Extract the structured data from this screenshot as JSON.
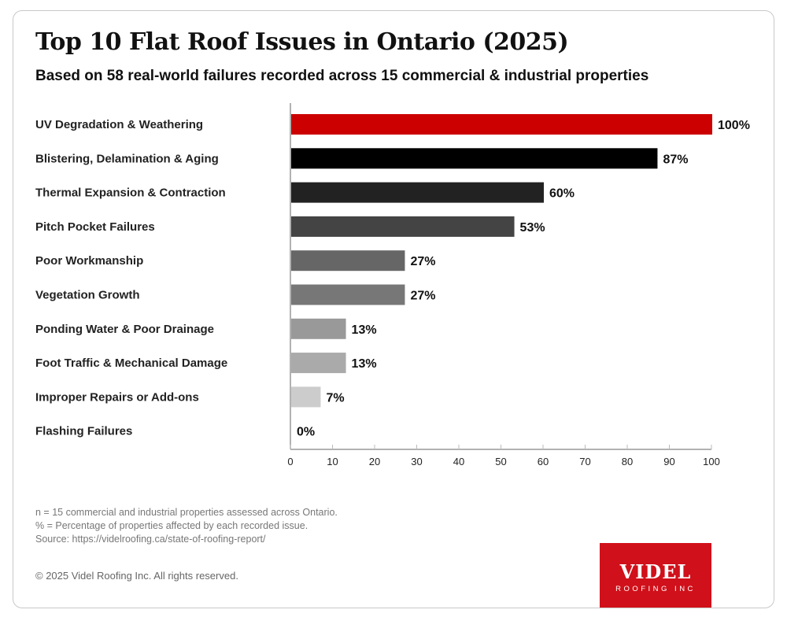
{
  "chart_data": {
    "type": "bar",
    "orientation": "horizontal",
    "title": "Top 10 Flat Roof Issues in Ontario (2025)",
    "subtitle": "Based on 58 real-world failures recorded across 15 commercial & industrial properties",
    "categories": [
      "UV Degradation & Weathering",
      "Blistering, Delamination & Aging",
      "Thermal Expansion & Contraction",
      "Pitch Pocket Failures",
      "Poor Workmanship",
      "Vegetation Growth",
      "Ponding Water & Poor Drainage",
      "Foot Traffic & Mechanical Damage",
      "Improper Repairs or Add-ons",
      "Flashing Failures"
    ],
    "values": [
      100,
      87,
      60,
      53,
      27,
      27,
      13,
      13,
      7,
      0
    ],
    "data_labels": [
      "100%",
      "87%",
      "60%",
      "53%",
      "27%",
      "27%",
      "13%",
      "13%",
      "7%",
      "0%"
    ],
    "colors": [
      "#cc0000",
      "#000000",
      "#222222",
      "#444444",
      "#666666",
      "#777777",
      "#999999",
      "#aaaaaa",
      "#cccccc",
      "#dddddd"
    ],
    "xlim": [
      0,
      100
    ],
    "xticks": [
      0,
      10,
      20,
      30,
      40,
      50,
      60,
      70,
      80,
      90,
      100
    ],
    "grid": false,
    "legend": "none"
  },
  "notes": [
    "n = 15 commercial and industrial properties assessed across Ontario.",
    "% = Percentage of properties affected by each recorded issue.",
    "Source: https://videlroofing.ca/state-of-roofing-report/"
  ],
  "copyright": "© 2025 Videl Roofing Inc. All rights reserved.",
  "logo": {
    "line1": "VIDEL",
    "line2": "ROOFING INC",
    "color": "#d0101a"
  }
}
